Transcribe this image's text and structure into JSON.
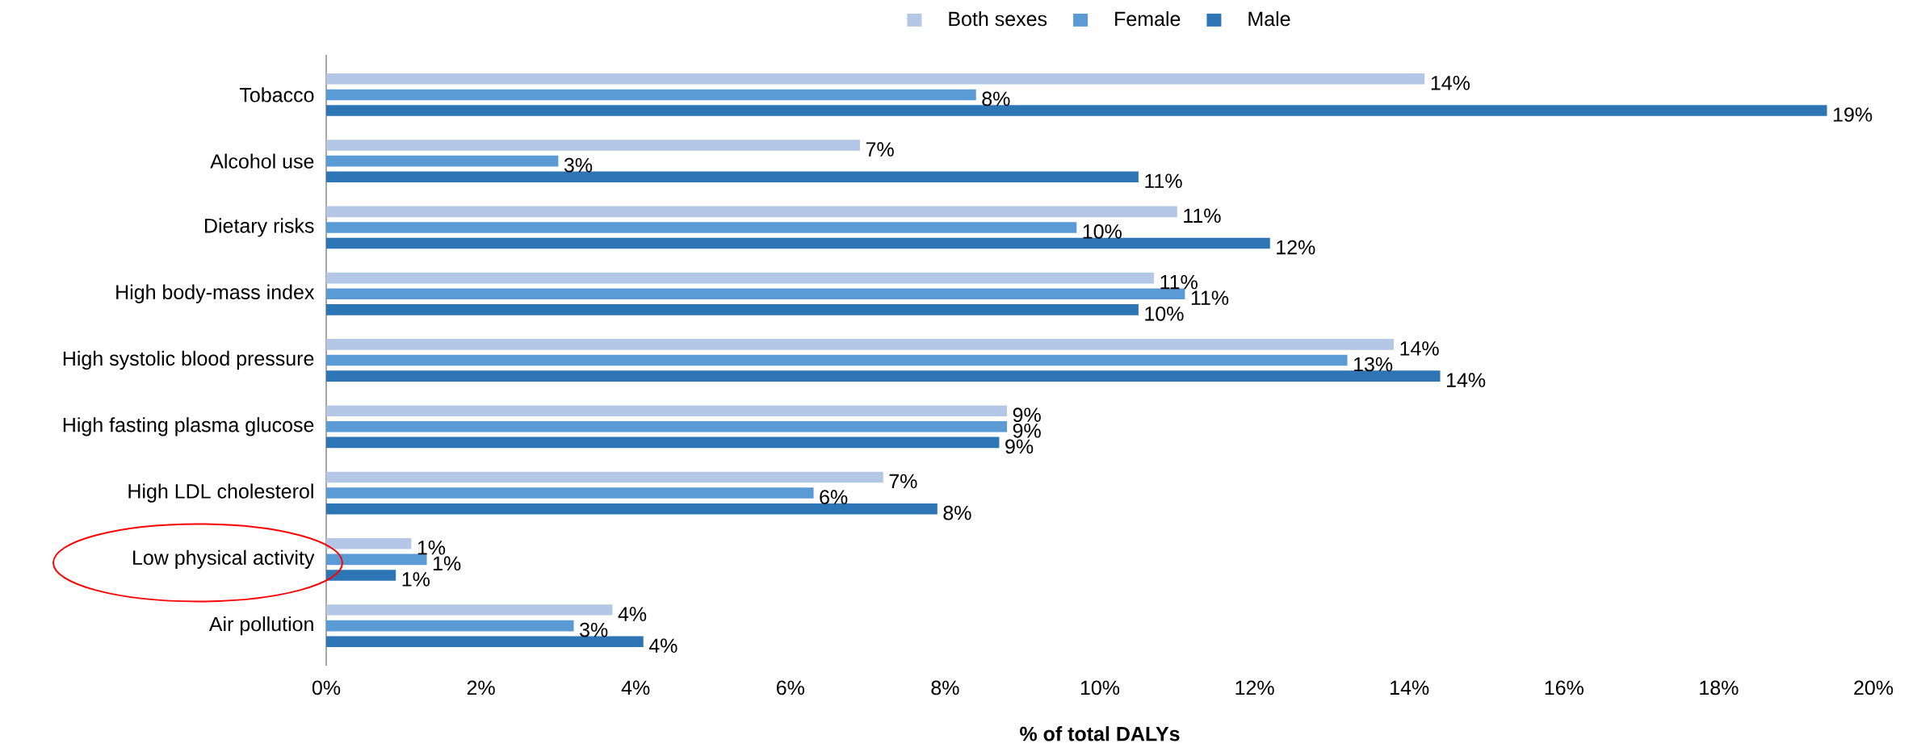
{
  "chart_data": {
    "type": "bar",
    "orientation": "horizontal",
    "xlabel": "% of total DALYs",
    "categories": [
      "Tobacco",
      "Alcohol use",
      "Dietary risks",
      "High body-mass index",
      "High systolic blood pressure",
      "High fasting plasma glucose",
      "High LDL cholesterol",
      "Low physical activity",
      "Air pollution"
    ],
    "series": [
      {
        "name": "Both sexes",
        "color": "#b4c7e7",
        "values": [
          14.2,
          6.9,
          11.0,
          10.7,
          13.8,
          8.8,
          7.2,
          1.1,
          3.7
        ],
        "value_labels": [
          "14%",
          "7%",
          "11%",
          "11%",
          "14%",
          "9%",
          "7%",
          "1%",
          "4%"
        ]
      },
      {
        "name": "Female",
        "color": "#5b9bd5",
        "values": [
          8.4,
          3.0,
          9.7,
          11.1,
          13.2,
          8.8,
          6.3,
          1.3,
          3.2
        ],
        "value_labels": [
          "8%",
          "3%",
          "10%",
          "11%",
          "13%",
          "9%",
          "6%",
          "1%",
          "3%"
        ]
      },
      {
        "name": "Male",
        "color": "#2e75b6",
        "values": [
          19.4,
          10.5,
          12.2,
          10.5,
          14.4,
          8.7,
          7.9,
          0.9,
          4.1
        ],
        "value_labels": [
          "19%",
          "11%",
          "12%",
          "10%",
          "14%",
          "9%",
          "8%",
          "1%",
          "4%"
        ]
      }
    ],
    "xlim": [
      0,
      20
    ],
    "xticks": [
      {
        "value": 0,
        "label": "0%"
      },
      {
        "value": 2,
        "label": "2%"
      },
      {
        "value": 4,
        "label": "4%"
      },
      {
        "value": 6,
        "label": "6%"
      },
      {
        "value": 8,
        "label": "8%"
      },
      {
        "value": 10,
        "label": "10%"
      },
      {
        "value": 12,
        "label": "12%"
      },
      {
        "value": 14,
        "label": "14%"
      },
      {
        "value": 16,
        "label": "16%"
      },
      {
        "value": 18,
        "label": "18%"
      },
      {
        "value": 20,
        "label": "20%"
      }
    ],
    "grid": false,
    "legend": "top"
  }
}
